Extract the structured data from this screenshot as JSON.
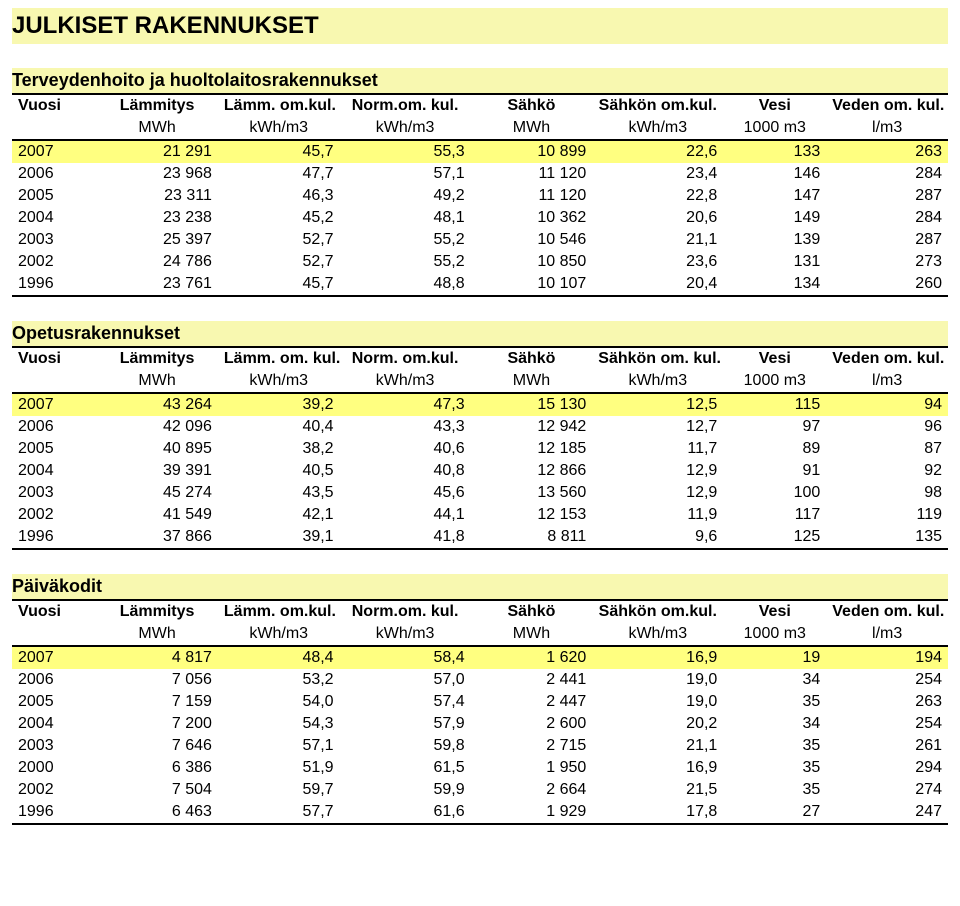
{
  "title": "JULKISET RAKENNUKSET",
  "commonHeader": {
    "cols": [
      "Vuosi",
      "Lämmitys",
      "Lämm. om.kul.",
      "Norm.om. kul.",
      "Sähkö",
      "Sähkön om.kul.",
      "Vesi",
      "Veden om. kul."
    ],
    "units": [
      "",
      "MWh",
      "kWh/m3",
      "kWh/m3",
      "MWh",
      "kWh/m3",
      "1000 m3",
      "l/m3"
    ]
  },
  "header2": {
    "cols": [
      "Vuosi",
      "Lämmitys",
      "Lämm. om. kul.",
      "Norm. om.kul.",
      "Sähkö",
      "Sähkön om. kul.",
      "Vesi",
      "Veden om. kul."
    ],
    "units": [
      "",
      "MWh",
      "kWh/m3",
      "kWh/m3",
      "MWh",
      "kWh/m3",
      "1000 m3",
      "l/m3"
    ]
  },
  "sections": [
    {
      "title": "Terveydenhoito ja huoltolaitosrakennukset",
      "headerStyle": 1,
      "rows": [
        {
          "year": "2007",
          "v": [
            "21 291",
            "45,7",
            "55,3",
            "10 899",
            "22,6",
            "133",
            "263"
          ],
          "hl": true
        },
        {
          "year": "2006",
          "v": [
            "23 968",
            "47,7",
            "57,1",
            "11 120",
            "23,4",
            "146",
            "284"
          ]
        },
        {
          "year": "2005",
          "v": [
            "23 311",
            "46,3",
            "49,2",
            "11 120",
            "22,8",
            "147",
            "287"
          ]
        },
        {
          "year": "2004",
          "v": [
            "23 238",
            "45,2",
            "48,1",
            "10 362",
            "20,6",
            "149",
            "284"
          ]
        },
        {
          "year": "2003",
          "v": [
            "25 397",
            "52,7",
            "55,2",
            "10 546",
            "21,1",
            "139",
            "287"
          ]
        },
        {
          "year": "2002",
          "v": [
            "24 786",
            "52,7",
            "55,2",
            "10 850",
            "23,6",
            "131",
            "273"
          ]
        },
        {
          "year": "1996",
          "v": [
            "23 761",
            "45,7",
            "48,8",
            "10 107",
            "20,4",
            "134",
            "260"
          ]
        }
      ]
    },
    {
      "title": "Opetusrakennukset",
      "headerStyle": 2,
      "rows": [
        {
          "year": "2007",
          "v": [
            "43 264",
            "39,2",
            "47,3",
            "15 130",
            "12,5",
            "115",
            "94"
          ],
          "hl": true
        },
        {
          "year": "2006",
          "v": [
            "42 096",
            "40,4",
            "43,3",
            "12 942",
            "12,7",
            "97",
            "96"
          ]
        },
        {
          "year": "2005",
          "v": [
            "40 895",
            "38,2",
            "40,6",
            "12 185",
            "11,7",
            "89",
            "87"
          ]
        },
        {
          "year": "2004",
          "v": [
            "39 391",
            "40,5",
            "40,8",
            "12 866",
            "12,9",
            "91",
            "92"
          ]
        },
        {
          "year": "2003",
          "v": [
            "45 274",
            "43,5",
            "45,6",
            "13 560",
            "12,9",
            "100",
            "98"
          ]
        },
        {
          "year": "2002",
          "v": [
            "41 549",
            "42,1",
            "44,1",
            "12 153",
            "11,9",
            "117",
            "119"
          ]
        },
        {
          "year": "1996",
          "v": [
            "37 866",
            "39,1",
            "41,8",
            "8 811",
            "9,6",
            "125",
            "135"
          ]
        }
      ]
    },
    {
      "title": "Päiväkodit",
      "headerStyle": 1,
      "rows": [
        {
          "year": "2007",
          "v": [
            "4 817",
            "48,4",
            "58,4",
            "1 620",
            "16,9",
            "19",
            "194"
          ],
          "hl": true
        },
        {
          "year": "2006",
          "v": [
            "7 056",
            "53,2",
            "57,0",
            "2 441",
            "19,0",
            "34",
            "254"
          ]
        },
        {
          "year": "2005",
          "v": [
            "7 159",
            "54,0",
            "57,4",
            "2 447",
            "19,0",
            "35",
            "263"
          ]
        },
        {
          "year": "2004",
          "v": [
            "7 200",
            "54,3",
            "57,9",
            "2 600",
            "20,2",
            "34",
            "254"
          ]
        },
        {
          "year": "2003",
          "v": [
            "7 646",
            "57,1",
            "59,8",
            "2 715",
            "21,1",
            "35",
            "261"
          ]
        },
        {
          "year": "2000",
          "v": [
            "6 386",
            "51,9",
            "61,5",
            "1 950",
            "16,9",
            "35",
            "294"
          ]
        },
        {
          "year": "2002",
          "v": [
            "7 504",
            "59,7",
            "59,9",
            "2 664",
            "21,5",
            "35",
            "274"
          ]
        },
        {
          "year": "1996",
          "v": [
            "6 463",
            "57,7",
            "61,6",
            "1 929",
            "17,8",
            "27",
            "247"
          ]
        }
      ]
    }
  ],
  "colors": {
    "titleBg": "#f8f8b0",
    "highlightBg": "#ffff80",
    "border": "#000000",
    "background": "#ffffff"
  }
}
